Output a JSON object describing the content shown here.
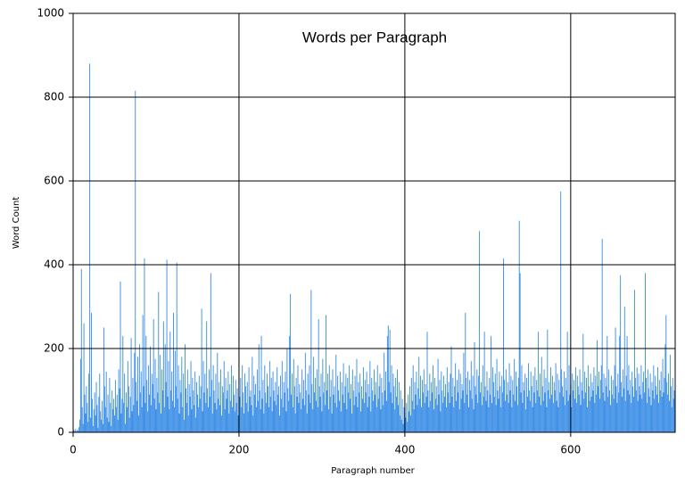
{
  "chart_data": {
    "type": "bar",
    "title": "Words per Paragraph",
    "x_label": "Paragraph number",
    "y_label": "Word Count",
    "color": "#3d8fe6",
    "grid": true,
    "xlim": [
      0,
      726
    ],
    "ylim": [
      0,
      1000
    ],
    "xticks": [
      0,
      200,
      400,
      600
    ],
    "yticks": [
      0,
      200,
      400,
      600,
      800,
      1000
    ],
    "x": [
      1,
      2,
      3,
      4,
      5,
      6,
      7,
      8,
      9,
      10,
      11,
      12,
      13,
      14,
      15,
      16,
      17,
      18,
      19,
      20,
      21,
      22,
      23,
      24,
      25,
      26,
      27,
      28,
      29,
      30,
      31,
      32,
      33,
      34,
      35,
      36,
      37,
      38,
      39,
      40,
      41,
      42,
      43,
      44,
      45,
      46,
      47,
      48,
      49,
      50,
      51,
      52,
      53,
      54,
      55,
      56,
      57,
      58,
      59,
      60,
      61,
      62,
      63,
      64,
      65,
      66,
      67,
      68,
      69,
      70,
      71,
      72,
      73,
      74,
      75,
      76,
      77,
      78,
      79,
      80,
      81,
      82,
      83,
      84,
      85,
      86,
      87,
      88,
      89,
      90,
      91,
      92,
      93,
      94,
      95,
      96,
      97,
      98,
      99,
      100,
      101,
      102,
      103,
      104,
      105,
      106,
      107,
      108,
      109,
      110,
      111,
      112,
      113,
      114,
      115,
      116,
      117,
      118,
      119,
      120,
      121,
      122,
      123,
      124,
      125,
      126,
      127,
      128,
      129,
      130,
      131,
      132,
      133,
      134,
      135,
      136,
      137,
      138,
      139,
      140,
      141,
      142,
      143,
      144,
      145,
      146,
      147,
      148,
      149,
      150,
      151,
      152,
      153,
      154,
      155,
      156,
      157,
      158,
      159,
      160,
      161,
      162,
      163,
      164,
      165,
      166,
      167,
      168,
      169,
      170,
      171,
      172,
      173,
      174,
      175,
      176,
      177,
      178,
      179,
      180,
      181,
      182,
      183,
      184,
      185,
      186,
      187,
      188,
      189,
      190,
      191,
      192,
      193,
      194,
      195,
      196,
      197,
      198,
      199,
      200,
      201,
      202,
      203,
      204,
      205,
      206,
      207,
      208,
      209,
      210,
      211,
      212,
      213,
      214,
      215,
      216,
      217,
      218,
      219,
      220,
      221,
      222,
      223,
      224,
      225,
      226,
      227,
      228,
      229,
      230,
      231,
      232,
      233,
      234,
      235,
      236,
      237,
      238,
      239,
      240,
      241,
      242,
      243,
      244,
      245,
      246,
      247,
      248,
      249,
      250,
      251,
      252,
      253,
      254,
      255,
      256,
      257,
      258,
      259,
      260,
      261,
      262,
      263,
      264,
      265,
      266,
      267,
      268,
      269,
      270,
      271,
      272,
      273,
      274,
      275,
      276,
      277,
      278,
      279,
      280,
      281,
      282,
      283,
      284,
      285,
      286,
      287,
      288,
      289,
      290,
      291,
      292,
      293,
      294,
      295,
      296,
      297,
      298,
      299,
      300,
      301,
      302,
      303,
      304,
      305,
      306,
      307,
      308,
      309,
      310,
      311,
      312,
      313,
      314,
      315,
      316,
      317,
      318,
      319,
      320,
      321,
      322,
      323,
      324,
      325,
      326,
      327,
      328,
      329,
      330,
      331,
      332,
      333,
      334,
      335,
      336,
      337,
      338,
      339,
      340,
      341,
      342,
      343,
      344,
      345,
      346,
      347,
      348,
      349,
      350,
      351,
      352,
      353,
      354,
      355,
      356,
      357,
      358,
      359,
      360,
      361,
      362,
      363,
      364,
      365,
      366,
      367,
      368,
      369,
      370,
      371,
      372,
      373,
      374,
      375,
      376,
      377,
      378,
      379,
      380,
      381,
      382,
      383,
      384,
      385,
      386,
      387,
      388,
      389,
      390,
      391,
      392,
      393,
      394,
      395,
      396,
      397,
      398,
      399,
      400,
      401,
      402,
      403,
      404,
      405,
      406,
      407,
      408,
      409,
      410,
      411,
      412,
      413,
      414,
      415,
      416,
      417,
      418,
      419,
      420,
      421,
      422,
      423,
      424,
      425,
      426,
      427,
      428,
      429,
      430,
      431,
      432,
      433,
      434,
      435,
      436,
      437,
      438,
      439,
      440,
      441,
      442,
      443,
      444,
      445,
      446,
      447,
      448,
      449,
      450,
      451,
      452,
      453,
      454,
      455,
      456,
      457,
      458,
      459,
      460,
      461,
      462,
      463,
      464,
      465,
      466,
      467,
      468,
      469,
      470,
      471,
      472,
      473,
      474,
      475,
      476,
      477,
      478,
      479,
      480,
      481,
      482,
      483,
      484,
      485,
      486,
      487,
      488,
      489,
      490,
      491,
      492,
      493,
      494,
      495,
      496,
      497,
      498,
      499,
      500,
      501,
      502,
      503,
      504,
      505,
      506,
      507,
      508,
      509,
      510,
      511,
      512,
      513,
      514,
      515,
      516,
      517,
      518,
      519,
      520,
      521,
      522,
      523,
      524,
      525,
      526,
      527,
      528,
      529,
      530,
      531,
      532,
      533,
      534,
      535,
      536,
      537,
      538,
      539,
      540,
      541,
      542,
      543,
      544,
      545,
      546,
      547,
      548,
      549,
      550,
      551,
      552,
      553,
      554,
      555,
      556,
      557,
      558,
      559,
      560,
      561,
      562,
      563,
      564,
      565,
      566,
      567,
      568,
      569,
      570,
      571,
      572,
      573,
      574,
      575,
      576,
      577,
      578,
      579,
      580,
      581,
      582,
      583,
      584,
      585,
      586,
      587,
      588,
      589,
      590,
      591,
      592,
      593,
      594,
      595,
      596,
      597,
      598,
      599,
      600,
      601,
      602,
      603,
      604,
      605,
      606,
      607,
      608,
      609,
      610,
      611,
      612,
      613,
      614,
      615,
      616,
      617,
      618,
      619,
      620,
      621,
      622,
      623,
      624,
      625,
      626,
      627,
      628,
      629,
      630,
      631,
      632,
      633,
      634,
      635,
      636,
      637,
      638,
      639,
      640,
      641,
      642,
      643,
      644,
      645,
      646,
      647,
      648,
      649,
      650,
      651,
      652,
      653,
      654,
      655,
      656,
      657,
      658,
      659,
      660,
      661,
      662,
      663,
      664,
      665,
      666,
      667,
      668,
      669,
      670,
      671,
      672,
      673,
      674,
      675,
      676,
      677,
      678,
      679,
      680,
      681,
      682,
      683,
      684,
      685,
      686,
      687,
      688,
      689,
      690,
      691,
      692,
      693,
      694,
      695,
      696,
      697,
      698,
      699,
      700,
      701,
      702,
      703,
      704,
      705,
      706,
      707,
      708,
      709,
      710,
      711,
      712,
      713,
      714,
      715,
      716,
      717,
      718,
      719,
      720,
      721,
      722,
      723,
      724,
      725
    ],
    "values": [
      5,
      3,
      8,
      2,
      6,
      4,
      12,
      30,
      175,
      390,
      60,
      20,
      260,
      90,
      45,
      110,
      70,
      25,
      140,
      880,
      35,
      285,
      80,
      15,
      55,
      95,
      40,
      120,
      65,
      10,
      85,
      140,
      50,
      30,
      75,
      20,
      250,
      110,
      60,
      145,
      35,
      90,
      25,
      130,
      70,
      15,
      100,
      55,
      80,
      40,
      125,
      60,
      90,
      30,
      150,
      105,
      360,
      45,
      80,
      230,
      70,
      140,
      20,
      95,
      60,
      170,
      110,
      35,
      85,
      225,
      50,
      130,
      65,
      190,
      815,
      120,
      75,
      180,
      40,
      210,
      95,
      145,
      60,
      280,
      110,
      415,
      70,
      230,
      125,
      50,
      160,
      90,
      205,
      65,
      140,
      115,
      270,
      80,
      175,
      55,
      130,
      95,
      335,
      70,
      185,
      45,
      150,
      100,
      265,
      60,
      210,
      120,
      412,
      85,
      170,
      55,
      240,
      100,
      145,
      75,
      285,
      60,
      195,
      110,
      405,
      80,
      160,
      45,
      125,
      95,
      180,
      60,
      140,
      30,
      210,
      105,
      70,
      150,
      40,
      115,
      85,
      170,
      55,
      130,
      100,
      65,
      145,
      35,
      120,
      90,
      60,
      135,
      80,
      110,
      295,
      50,
      170,
      95,
      140,
      70,
      265,
      105,
      60,
      150,
      85,
      380,
      125,
      45,
      160,
      100,
      70,
      140,
      55,
      190,
      80,
      120,
      65,
      150,
      40,
      110,
      95,
      170,
      55,
      130,
      80,
      100,
      145,
      45,
      115,
      75,
      160,
      60,
      135,
      90,
      50,
      125,
      70,
      105,
      40,
      250,
      85,
      130,
      60,
      160,
      95,
      45,
      140,
      110,
      70,
      120,
      50,
      155,
      85,
      100,
      65,
      180,
      40,
      135,
      90,
      115,
      60,
      150,
      75,
      210,
      100,
      55,
      230,
      80,
      125,
      45,
      160,
      95,
      70,
      140,
      110,
      60,
      170,
      85,
      130,
      50,
      145,
      100,
      75,
      120,
      65,
      155,
      90,
      110,
      40,
      135,
      80,
      170,
      60,
      120,
      95,
      145,
      50,
      200,
      105,
      75,
      230,
      330,
      90,
      140,
      60,
      175,
      110,
      45,
      130,
      85,
      160,
      70,
      115,
      95,
      55,
      150,
      80,
      125,
      65,
      190,
      100,
      45,
      140,
      90,
      160,
      70,
      340,
      115,
      55,
      180,
      95,
      130,
      75,
      150,
      60,
      270,
      110,
      85,
      140,
      50,
      175,
      95,
      120,
      65,
      280,
      100,
      140,
      55,
      160,
      85,
      125,
      45,
      150,
      90,
      110,
      70,
      185,
      60,
      135,
      100,
      75,
      145,
      50,
      120,
      90,
      165,
      70,
      110,
      140,
      55,
      130,
      95,
      160,
      80,
      115,
      45,
      150,
      100,
      65,
      135,
      85,
      175,
      60,
      120,
      95,
      140,
      50,
      110,
      80,
      155,
      70,
      125,
      95,
      145,
      60,
      115,
      85,
      170,
      50,
      130,
      100,
      75,
      150,
      90,
      120,
      60,
      160,
      80,
      110,
      140,
      55,
      130,
      95,
      65,
      190,
      100,
      145,
      75,
      230,
      255,
      120,
      245,
      95,
      160,
      70,
      140,
      110,
      55,
      130,
      85,
      150,
      65,
      120,
      40,
      100,
      30,
      80,
      20,
      60,
      45,
      35,
      70,
      25,
      90,
      50,
      110,
      40,
      130,
      75,
      160,
      55,
      120,
      90,
      145,
      65,
      105,
      180,
      80,
      135,
      60,
      125,
      95,
      150,
      70,
      115,
      85,
      240,
      100,
      60,
      140,
      75,
      120,
      95,
      160,
      55,
      130,
      80,
      110,
      65,
      175,
      90,
      125,
      50,
      145,
      100,
      70,
      135,
      85,
      115,
      60,
      155,
      95,
      120,
      70,
      140,
      205,
      85,
      130,
      60,
      110,
      165,
      75,
      125,
      95,
      150,
      55,
      140,
      80,
      115,
      100,
      190,
      70,
      285,
      130,
      90,
      145,
      60,
      125,
      100,
      170,
      80,
      135,
      55,
      215,
      110,
      90,
      150,
      70,
      135,
      480,
      95,
      120,
      65,
      160,
      85,
      240,
      110,
      75,
      145,
      100,
      60,
      130,
      90,
      230,
      70,
      155,
      120,
      85,
      140,
      65,
      175,
      100,
      80,
      145,
      110,
      60,
      135,
      95,
      415,
      125,
      75,
      150,
      90,
      120,
      70,
      165,
      100,
      135,
      60,
      125,
      90,
      175,
      75,
      145,
      110,
      65,
      130,
      505,
      380,
      95,
      160,
      70,
      120,
      100,
      140,
      55,
      130,
      85,
      165,
      100,
      75,
      145,
      110,
      60,
      135,
      95,
      155,
      70,
      125,
      100,
      240,
      85,
      140,
      65,
      180,
      110,
      75,
      150,
      95,
      130,
      60,
      245,
      100,
      120,
      80,
      155,
      90,
      135,
      70,
      120,
      100,
      165,
      75,
      140,
      60,
      125,
      95,
      575,
      150,
      110,
      85,
      145,
      65,
      130,
      100,
      240,
      75,
      160,
      90,
      115,
      60,
      140,
      100,
      125,
      80,
      155,
      70,
      135,
      110,
      90,
      150,
      65,
      120,
      100,
      235,
      80,
      145,
      95,
      130,
      60,
      160,
      110,
      75,
      140,
      85,
      120,
      100,
      155,
      70,
      135,
      90,
      220,
      110,
      145,
      80,
      125,
      160,
      462,
      95,
      140,
      75,
      130,
      110,
      230,
      85,
      150,
      100,
      65,
      135,
      90,
      125,
      80,
      160,
      250,
      110,
      70,
      140,
      95,
      230,
      375,
      120,
      85,
      150,
      105,
      300,
      75,
      135,
      230,
      100,
      160,
      90,
      125,
      70,
      145,
      110,
      85,
      340,
      130,
      100,
      155,
      75,
      140,
      110,
      90,
      160,
      80,
      120,
      145,
      95,
      380,
      130,
      70,
      150,
      105,
      85,
      140,
      65,
      120,
      100,
      160,
      80,
      135,
      110,
      90,
      155,
      70,
      125,
      100,
      145,
      85,
      175,
      95,
      130,
      210,
      280,
      120,
      90,
      140,
      75,
      185,
      110,
      60,
      130,
      80,
      100
    ]
  }
}
